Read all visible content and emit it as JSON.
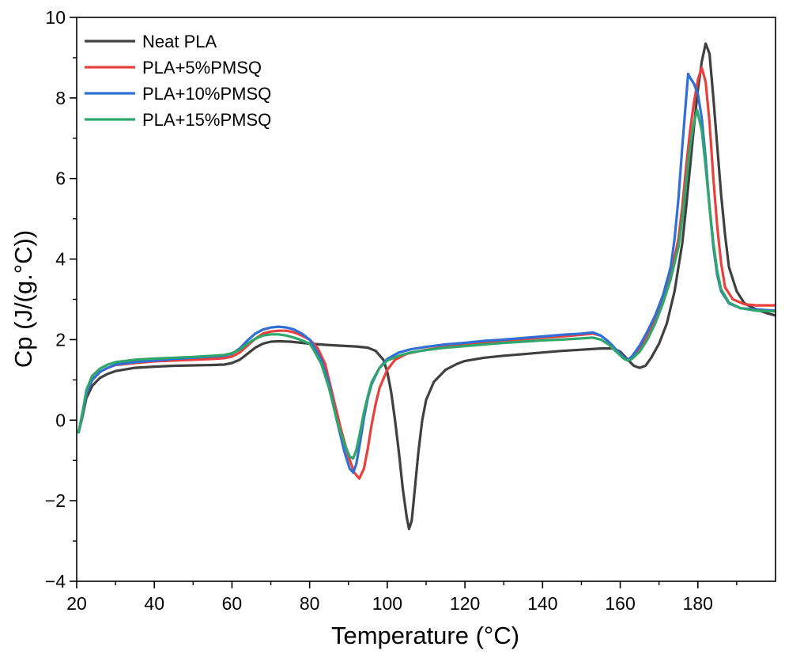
{
  "chart_data": {
    "type": "line",
    "title": "",
    "xlabel": "Temperature (°C)",
    "ylabel": "Cp (J/(g.°C))",
    "xlim": [
      20,
      200
    ],
    "ylim": [
      -4,
      10
    ],
    "x_ticks": [
      20,
      40,
      60,
      80,
      100,
      120,
      140,
      160,
      180
    ],
    "y_ticks": [
      -4,
      -2,
      0,
      2,
      4,
      6,
      8,
      10
    ],
    "legend_position": "top-left",
    "grid": false,
    "series": [
      {
        "name": "Neat PLA",
        "color": "#404040",
        "points": [
          [
            20.5,
            -0.3
          ],
          [
            21.5,
            0.1
          ],
          [
            22.5,
            0.55
          ],
          [
            24,
            0.85
          ],
          [
            26,
            1.05
          ],
          [
            28,
            1.15
          ],
          [
            30,
            1.22
          ],
          [
            35,
            1.3
          ],
          [
            40,
            1.33
          ],
          [
            45,
            1.35
          ],
          [
            50,
            1.36
          ],
          [
            55,
            1.37
          ],
          [
            58,
            1.38
          ],
          [
            60,
            1.42
          ],
          [
            62,
            1.5
          ],
          [
            64,
            1.65
          ],
          [
            66,
            1.8
          ],
          [
            68,
            1.9
          ],
          [
            70,
            1.95
          ],
          [
            72,
            1.96
          ],
          [
            75,
            1.95
          ],
          [
            78,
            1.92
          ],
          [
            80,
            1.9
          ],
          [
            84,
            1.87
          ],
          [
            88,
            1.85
          ],
          [
            92,
            1.83
          ],
          [
            95,
            1.8
          ],
          [
            97,
            1.72
          ],
          [
            99,
            1.5
          ],
          [
            100,
            1.2
          ],
          [
            101,
            0.7
          ],
          [
            102,
            0.0
          ],
          [
            103,
            -0.8
          ],
          [
            104,
            -1.7
          ],
          [
            105,
            -2.4
          ],
          [
            105.6,
            -2.7
          ],
          [
            106.3,
            -2.5
          ],
          [
            107,
            -1.8
          ],
          [
            108,
            -0.8
          ],
          [
            109,
            0.0
          ],
          [
            110,
            0.5
          ],
          [
            112,
            0.95
          ],
          [
            115,
            1.25
          ],
          [
            118,
            1.4
          ],
          [
            120,
            1.47
          ],
          [
            125,
            1.55
          ],
          [
            130,
            1.6
          ],
          [
            135,
            1.64
          ],
          [
            140,
            1.68
          ],
          [
            145,
            1.72
          ],
          [
            150,
            1.75
          ],
          [
            155,
            1.78
          ],
          [
            158,
            1.78
          ],
          [
            160,
            1.7
          ],
          [
            162,
            1.5
          ],
          [
            163.5,
            1.35
          ],
          [
            165,
            1.3
          ],
          [
            166.5,
            1.35
          ],
          [
            168,
            1.55
          ],
          [
            170,
            1.9
          ],
          [
            172,
            2.4
          ],
          [
            174,
            3.2
          ],
          [
            176,
            4.4
          ],
          [
            177,
            5.3
          ],
          [
            178,
            6.3
          ],
          [
            179,
            7.3
          ],
          [
            180,
            8.2
          ],
          [
            181,
            8.9
          ],
          [
            182,
            9.35
          ],
          [
            183,
            9.1
          ],
          [
            184,
            8.0
          ],
          [
            185,
            6.8
          ],
          [
            186,
            5.6
          ],
          [
            187,
            4.6
          ],
          [
            188,
            3.8
          ],
          [
            190,
            3.2
          ],
          [
            192,
            2.9
          ],
          [
            195,
            2.75
          ],
          [
            198,
            2.65
          ],
          [
            200,
            2.6
          ]
        ]
      },
      {
        "name": "PLA+5%PMSQ",
        "color": "#e8403d",
        "points": [
          [
            20.5,
            -0.3
          ],
          [
            21.5,
            0.15
          ],
          [
            22.5,
            0.65
          ],
          [
            24,
            1.0
          ],
          [
            26,
            1.2
          ],
          [
            28,
            1.3
          ],
          [
            30,
            1.37
          ],
          [
            35,
            1.42
          ],
          [
            40,
            1.46
          ],
          [
            45,
            1.48
          ],
          [
            50,
            1.5
          ],
          [
            55,
            1.52
          ],
          [
            58,
            1.54
          ],
          [
            60,
            1.58
          ],
          [
            62,
            1.68
          ],
          [
            64,
            1.85
          ],
          [
            66,
            2.02
          ],
          [
            68,
            2.15
          ],
          [
            70,
            2.2
          ],
          [
            72,
            2.22
          ],
          [
            74,
            2.22
          ],
          [
            76,
            2.18
          ],
          [
            78,
            2.1
          ],
          [
            80,
            2.0
          ],
          [
            82,
            1.8
          ],
          [
            84,
            1.4
          ],
          [
            86,
            0.6
          ],
          [
            88,
            -0.2
          ],
          [
            90,
            -0.9
          ],
          [
            91.5,
            -1.3
          ],
          [
            92.8,
            -1.45
          ],
          [
            94,
            -1.2
          ],
          [
            95,
            -0.7
          ],
          [
            96,
            -0.1
          ],
          [
            97,
            0.4
          ],
          [
            98,
            0.8
          ],
          [
            100,
            1.25
          ],
          [
            102,
            1.5
          ],
          [
            105,
            1.65
          ],
          [
            110,
            1.75
          ],
          [
            115,
            1.82
          ],
          [
            120,
            1.88
          ],
          [
            125,
            1.93
          ],
          [
            130,
            1.97
          ],
          [
            135,
            2.01
          ],
          [
            140,
            2.05
          ],
          [
            145,
            2.08
          ],
          [
            150,
            2.12
          ],
          [
            153,
            2.15
          ],
          [
            155,
            2.1
          ],
          [
            157,
            1.95
          ],
          [
            159,
            1.75
          ],
          [
            161,
            1.55
          ],
          [
            162,
            1.5
          ],
          [
            163,
            1.55
          ],
          [
            165,
            1.8
          ],
          [
            167,
            2.1
          ],
          [
            169,
            2.5
          ],
          [
            171,
            3.0
          ],
          [
            173,
            3.6
          ],
          [
            175,
            4.5
          ],
          [
            176,
            5.3
          ],
          [
            177,
            6.3
          ],
          [
            178,
            7.2
          ],
          [
            179,
            7.9
          ],
          [
            180,
            8.45
          ],
          [
            181,
            8.75
          ],
          [
            182,
            8.4
          ],
          [
            183,
            7.4
          ],
          [
            184,
            6.0
          ],
          [
            185,
            4.8
          ],
          [
            186,
            3.9
          ],
          [
            187,
            3.3
          ],
          [
            189,
            3.0
          ],
          [
            192,
            2.88
          ],
          [
            195,
            2.85
          ],
          [
            198,
            2.85
          ],
          [
            200,
            2.85
          ]
        ]
      },
      {
        "name": "PLA+10%PMSQ",
        "color": "#2f6fd6",
        "points": [
          [
            20.5,
            -0.3
          ],
          [
            21.5,
            0.15
          ],
          [
            22.5,
            0.65
          ],
          [
            24,
            1.0
          ],
          [
            26,
            1.2
          ],
          [
            28,
            1.3
          ],
          [
            30,
            1.38
          ],
          [
            35,
            1.44
          ],
          [
            40,
            1.48
          ],
          [
            45,
            1.52
          ],
          [
            50,
            1.55
          ],
          [
            55,
            1.58
          ],
          [
            58,
            1.6
          ],
          [
            60,
            1.65
          ],
          [
            62,
            1.78
          ],
          [
            64,
            1.98
          ],
          [
            66,
            2.15
          ],
          [
            68,
            2.25
          ],
          [
            70,
            2.3
          ],
          [
            72,
            2.32
          ],
          [
            74,
            2.3
          ],
          [
            76,
            2.25
          ],
          [
            78,
            2.15
          ],
          [
            80,
            2.0
          ],
          [
            81,
            1.85
          ],
          [
            83,
            1.5
          ],
          [
            85,
            0.9
          ],
          [
            87,
            0.0
          ],
          [
            89,
            -0.8
          ],
          [
            90.3,
            -1.2
          ],
          [
            91.2,
            -1.3
          ],
          [
            92,
            -1.1
          ],
          [
            93,
            -0.55
          ],
          [
            94,
            0.05
          ],
          [
            95,
            0.55
          ],
          [
            96,
            0.9
          ],
          [
            98,
            1.3
          ],
          [
            100,
            1.52
          ],
          [
            103,
            1.68
          ],
          [
            106,
            1.76
          ],
          [
            110,
            1.82
          ],
          [
            115,
            1.88
          ],
          [
            120,
            1.92
          ],
          [
            125,
            1.97
          ],
          [
            130,
            2.0
          ],
          [
            135,
            2.04
          ],
          [
            140,
            2.08
          ],
          [
            145,
            2.12
          ],
          [
            150,
            2.15
          ],
          [
            153,
            2.18
          ],
          [
            155,
            2.1
          ],
          [
            157,
            1.95
          ],
          [
            159,
            1.75
          ],
          [
            161,
            1.55
          ],
          [
            162,
            1.5
          ],
          [
            163,
            1.58
          ],
          [
            165,
            1.85
          ],
          [
            167,
            2.2
          ],
          [
            169,
            2.6
          ],
          [
            171,
            3.1
          ],
          [
            173,
            3.8
          ],
          [
            174,
            4.5
          ],
          [
            175,
            5.5
          ],
          [
            176,
            6.8
          ],
          [
            177,
            8.0
          ],
          [
            177.5,
            8.6
          ],
          [
            178,
            8.5
          ],
          [
            179,
            8.35
          ],
          [
            180,
            8.1
          ],
          [
            181,
            7.5
          ],
          [
            182,
            6.5
          ],
          [
            183,
            5.3
          ],
          [
            184,
            4.3
          ],
          [
            185,
            3.6
          ],
          [
            186,
            3.2
          ],
          [
            188,
            2.9
          ],
          [
            191,
            2.78
          ],
          [
            195,
            2.75
          ],
          [
            200,
            2.72
          ]
        ]
      },
      {
        "name": "PLA+15%PMSQ",
        "color": "#2fa66a",
        "points": [
          [
            20.5,
            -0.3
          ],
          [
            21.5,
            0.2
          ],
          [
            22.5,
            0.75
          ],
          [
            24,
            1.1
          ],
          [
            26,
            1.28
          ],
          [
            28,
            1.38
          ],
          [
            30,
            1.44
          ],
          [
            35,
            1.5
          ],
          [
            40,
            1.53
          ],
          [
            45,
            1.55
          ],
          [
            50,
            1.57
          ],
          [
            55,
            1.6
          ],
          [
            58,
            1.62
          ],
          [
            60,
            1.66
          ],
          [
            62,
            1.75
          ],
          [
            64,
            1.9
          ],
          [
            66,
            2.02
          ],
          [
            68,
            2.1
          ],
          [
            70,
            2.13
          ],
          [
            72,
            2.13
          ],
          [
            74,
            2.1
          ],
          [
            76,
            2.05
          ],
          [
            78,
            1.98
          ],
          [
            80,
            1.9
          ],
          [
            81,
            1.75
          ],
          [
            83,
            1.4
          ],
          [
            85,
            0.8
          ],
          [
            87,
            0.0
          ],
          [
            89,
            -0.6
          ],
          [
            90.3,
            -0.9
          ],
          [
            91.2,
            -0.95
          ],
          [
            92,
            -0.75
          ],
          [
            93,
            -0.3
          ],
          [
            94,
            0.2
          ],
          [
            95,
            0.6
          ],
          [
            96,
            0.95
          ],
          [
            98,
            1.3
          ],
          [
            100,
            1.48
          ],
          [
            103,
            1.6
          ],
          [
            106,
            1.68
          ],
          [
            110,
            1.74
          ],
          [
            115,
            1.8
          ],
          [
            120,
            1.84
          ],
          [
            125,
            1.88
          ],
          [
            130,
            1.92
          ],
          [
            135,
            1.95
          ],
          [
            140,
            1.98
          ],
          [
            145,
            2.0
          ],
          [
            150,
            2.03
          ],
          [
            153,
            2.05
          ],
          [
            155,
            2.0
          ],
          [
            157,
            1.88
          ],
          [
            159,
            1.7
          ],
          [
            161,
            1.52
          ],
          [
            162,
            1.48
          ],
          [
            163,
            1.52
          ],
          [
            165,
            1.7
          ],
          [
            167,
            2.0
          ],
          [
            169,
            2.4
          ],
          [
            171,
            2.9
          ],
          [
            173,
            3.5
          ],
          [
            175,
            4.3
          ],
          [
            176,
            5.0
          ],
          [
            177,
            5.9
          ],
          [
            178,
            6.8
          ],
          [
            179,
            7.4
          ],
          [
            179.8,
            7.7
          ],
          [
            181,
            7.2
          ],
          [
            182,
            6.3
          ],
          [
            183,
            5.3
          ],
          [
            184,
            4.4
          ],
          [
            185,
            3.7
          ],
          [
            186,
            3.25
          ],
          [
            188,
            2.92
          ],
          [
            191,
            2.78
          ],
          [
            195,
            2.72
          ],
          [
            200,
            2.7
          ]
        ]
      }
    ]
  }
}
